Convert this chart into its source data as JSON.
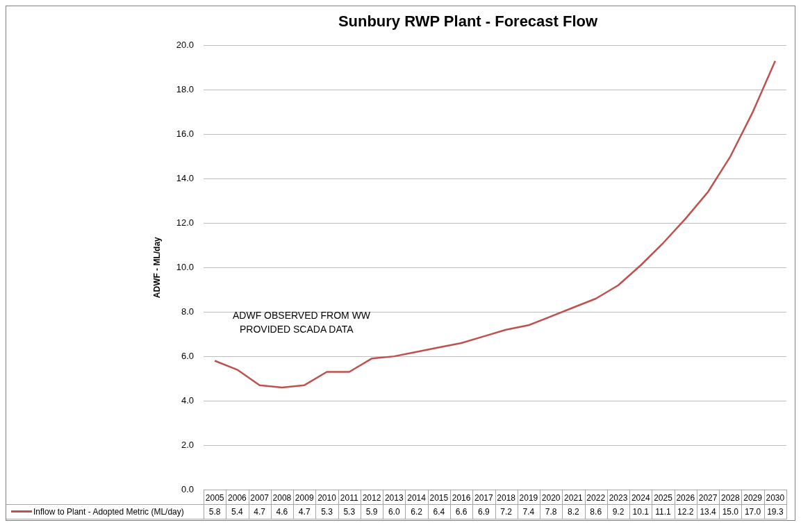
{
  "chart_data": {
    "type": "line",
    "title": "Sunbury RWP Plant - Forecast Flow",
    "ylabel": "ADWF - ML/day",
    "categories": [
      "2005",
      "2006",
      "2007",
      "2008",
      "2009",
      "2010",
      "2011",
      "2012",
      "2013",
      "2014",
      "2015",
      "2016",
      "2017",
      "2018",
      "2019",
      "2020",
      "2021",
      "2022",
      "2023",
      "2024",
      "2025",
      "2026",
      "2027",
      "2028",
      "2029",
      "2030"
    ],
    "series": [
      {
        "name": "Inflow to Plant - Adopted Metric (ML/day)",
        "color": "#c0504d",
        "values": [
          5.8,
          5.4,
          4.7,
          4.6,
          4.7,
          5.3,
          5.3,
          5.9,
          6.0,
          6.2,
          6.4,
          6.6,
          6.9,
          7.2,
          7.4,
          7.8,
          8.2,
          8.6,
          9.2,
          10.1,
          11.1,
          12.2,
          13.4,
          15.0,
          17.0,
          19.3
        ],
        "value_labels": [
          "5.8",
          "5.4",
          "4.7",
          "4.6",
          "4.7",
          "5.3",
          "5.3",
          "5.9",
          "6.0",
          "6.2",
          "6.4",
          "6.6",
          "6.9",
          "7.2",
          "7.4",
          "7.8",
          "8.2",
          "8.6",
          "9.2",
          "10.1",
          "11.1",
          "12.2",
          "13.4",
          "15.0",
          "17.0",
          "19.3"
        ]
      }
    ],
    "ylim": [
      0,
      20
    ],
    "yticks": [
      {
        "value": 0,
        "label": "0.0"
      },
      {
        "value": 2,
        "label": "2.0"
      },
      {
        "value": 4,
        "label": "4.0"
      },
      {
        "value": 6,
        "label": "6.0"
      },
      {
        "value": 8,
        "label": "8.0"
      },
      {
        "value": 10,
        "label": "10.0"
      },
      {
        "value": 12,
        "label": "12.0"
      },
      {
        "value": 14,
        "label": "14.0"
      },
      {
        "value": 16,
        "label": "16.0"
      },
      {
        "value": 18,
        "label": "18.0"
      },
      {
        "value": 20,
        "label": "20.0"
      }
    ],
    "grid": "y",
    "legend": "bottom",
    "marker": "none",
    "line_style": "solid",
    "annotations": [
      "ADWF OBSERVED FROM WW\nPROVIDED SCADA DATA"
    ]
  }
}
